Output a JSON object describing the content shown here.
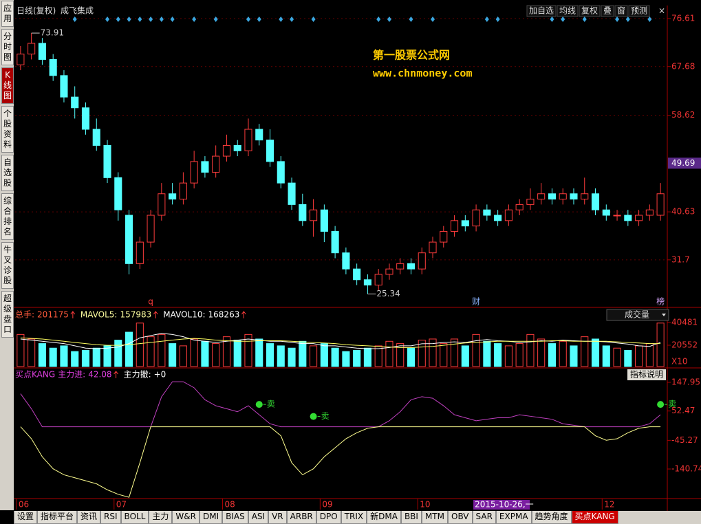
{
  "sidebar": [
    "应用",
    "分时图",
    "K线图",
    "个股资料",
    "自选股",
    "综合排名",
    "牛叉诊股",
    "超级盘口"
  ],
  "sidebar_active": 2,
  "header": {
    "title": "日线(复权)",
    "stock": "成飞集成",
    "buttons": [
      "加自选",
      "均线",
      "复权",
      "叠",
      "窗",
      "预测"
    ]
  },
  "watermark": {
    "line1": "第一股票公式网",
    "line2": "www.chnmoney.com"
  },
  "price": {
    "ylim": [
      22.85,
      79.04
    ],
    "yticks": [
      76.61,
      67.68,
      58.62,
      40.63,
      31.7
    ],
    "cursor": 49.69,
    "up_color": "#ff3c3c",
    "down_color": "#54ffff",
    "open": [
      68,
      70,
      72,
      69,
      66,
      62,
      60,
      56,
      53,
      47,
      40,
      31,
      35,
      40,
      44,
      43,
      46,
      50,
      48,
      51,
      53,
      52,
      56,
      54,
      50,
      46,
      42,
      39,
      41,
      37,
      33,
      30,
      28,
      27,
      29,
      30,
      31,
      30,
      33,
      35,
      37,
      39,
      38,
      41,
      40,
      39,
      41,
      42,
      43,
      44,
      43,
      44,
      43,
      44,
      41,
      40,
      40,
      39,
      40,
      40
    ],
    "high": [
      71.5,
      73.91,
      73,
      70,
      67,
      64,
      61,
      58,
      54,
      48,
      41,
      36,
      41,
      46,
      46,
      48,
      52,
      51,
      53,
      55,
      54,
      58,
      57,
      56,
      51,
      47,
      44,
      43,
      42,
      38,
      34,
      31,
      29,
      30,
      31,
      32,
      32,
      34,
      36,
      38,
      40,
      40,
      42,
      42,
      41,
      42,
      43,
      45,
      46,
      45,
      45,
      45,
      47,
      45,
      42,
      41,
      41,
      41,
      42,
      46
    ],
    "low": [
      67,
      69,
      68,
      65,
      61,
      58,
      55,
      52,
      46,
      39,
      29,
      30,
      34,
      39,
      42,
      42,
      45,
      47,
      47,
      50,
      51,
      51,
      53,
      49,
      45,
      41,
      38,
      36,
      35,
      32,
      29,
      27,
      25.34,
      26,
      28,
      29,
      29,
      29,
      32,
      34,
      36,
      37,
      37,
      39,
      38,
      38,
      40,
      41,
      42,
      42,
      42,
      42,
      42,
      40,
      39,
      39,
      38,
      38,
      39,
      39
    ],
    "close": [
      70,
      72,
      69,
      66,
      62,
      60,
      56,
      53,
      47,
      41,
      31,
      35,
      40,
      44,
      43,
      46,
      50,
      48,
      51,
      53,
      52,
      56,
      54,
      50,
      46,
      42,
      39,
      41,
      37,
      33,
      30,
      28,
      27,
      29,
      30,
      31,
      30,
      33,
      35,
      37,
      39,
      38,
      41,
      40,
      39,
      41,
      42,
      43,
      44,
      43,
      44,
      43,
      44,
      41,
      40,
      40,
      39,
      40,
      41,
      44
    ],
    "markers": [
      {
        "index": 12,
        "label": "q"
      },
      {
        "index": 42,
        "label": "财"
      },
      {
        "index": 59,
        "label": "榜"
      }
    ]
  },
  "volume": {
    "dropdown": "成交量",
    "stats": [
      {
        "label": "总手:",
        "value": 201175
      },
      {
        "label": "MAVOL5:",
        "value": 157983
      },
      {
        "label": "MAVOL10:",
        "value": 168263
      }
    ],
    "ylim": [
      1832,
      44708
    ],
    "yticks": [
      40481,
      20552
    ],
    "unit": "X10",
    "values": [
      30000,
      26000,
      22000,
      18000,
      20000,
      15000,
      16000,
      18000,
      20000,
      25000,
      32000,
      40000,
      28000,
      30000,
      22000,
      20000,
      26000,
      24000,
      22000,
      28000,
      25000,
      30000,
      26000,
      22000,
      20000,
      18000,
      24000,
      20000,
      22000,
      18000,
      15000,
      16000,
      18000,
      20000,
      24000,
      22000,
      18000,
      25000,
      26000,
      22000,
      26000,
      20000,
      30000,
      24000,
      22000,
      20000,
      22000,
      30000,
      26000,
      22000,
      24000,
      20000,
      28000,
      26000,
      20000,
      18000,
      16000,
      20000,
      22000,
      40000
    ],
    "ma5": [
      26000,
      25000,
      24000,
      23000,
      22000,
      20000,
      18000,
      17500,
      18000,
      19000,
      22000,
      27000,
      29000,
      31000,
      30000,
      28000,
      25000,
      24000,
      23000,
      24000,
      25000,
      26000,
      25000,
      24000,
      24000,
      23000,
      22000,
      22000,
      20000,
      20000,
      19000,
      18000,
      17500,
      17500,
      18500,
      20000,
      20000,
      21800,
      22000,
      23000,
      23500,
      23000,
      24500,
      25500,
      24500,
      24000,
      23000,
      23500,
      24500,
      24000,
      25000,
      24500,
      24000,
      24000,
      23500,
      22500,
      21500,
      20000,
      19500,
      23000
    ],
    "ma10": [
      27000,
      26500,
      26000,
      25000,
      24000,
      23000,
      22000,
      21000,
      20500,
      20500,
      21000,
      22000,
      23000,
      24000,
      25000,
      26000,
      26500,
      26000,
      25000,
      24500,
      24000,
      24000,
      24500,
      24500,
      24500,
      24000,
      23500,
      23000,
      22500,
      22000,
      21000,
      20500,
      20000,
      19500,
      19000,
      18500,
      18500,
      19000,
      19500,
      20500,
      21500,
      22500,
      23000,
      23500,
      24000,
      24000,
      24000,
      24000,
      24000,
      24500,
      24500,
      24000,
      24000,
      24000,
      24000,
      23500,
      23000,
      22500,
      22000,
      22000
    ]
  },
  "indicator": {
    "name": "买点KANG",
    "stats": [
      {
        "label": "主力进:",
        "value": 42.08
      },
      {
        "label": "主力撤:",
        "value": "+0"
      }
    ],
    "help": "指标说明",
    "ylim": [
      -239.2,
      166.3
    ],
    "yticks": [
      147.95,
      52.47,
      -45.27,
      -140.74
    ],
    "upper": [
      110,
      60,
      0,
      0,
      0,
      0,
      0,
      0,
      0,
      0,
      0,
      0,
      0,
      100,
      150,
      150,
      130,
      90,
      70,
      60,
      50,
      70,
      40,
      10,
      0,
      0,
      0,
      0,
      0,
      0,
      0,
      0,
      0,
      0,
      20,
      50,
      90,
      100,
      95,
      70,
      40,
      30,
      20,
      25,
      30,
      30,
      40,
      35,
      30,
      25,
      10,
      5,
      0,
      0,
      0,
      0,
      0,
      0,
      10,
      40
    ],
    "lower": [
      0,
      -40,
      -100,
      -140,
      -160,
      -170,
      -180,
      -190,
      -210,
      -225,
      -235,
      -120,
      0,
      0,
      0,
      0,
      0,
      0,
      0,
      0,
      0,
      0,
      0,
      0,
      -30,
      -120,
      -160,
      -140,
      -100,
      -70,
      -40,
      -20,
      -5,
      0,
      0,
      0,
      0,
      0,
      0,
      0,
      0,
      0,
      0,
      0,
      0,
      0,
      0,
      0,
      0,
      0,
      0,
      0,
      0,
      -30,
      -45,
      -40,
      -20,
      -5,
      0,
      0
    ],
    "sell": {
      "indices": [
        22,
        27,
        59
      ],
      "label": "卖"
    }
  },
  "xaxis": [
    {
      "index": 0,
      "label": "06"
    },
    {
      "index": 9,
      "label": "07"
    },
    {
      "index": 19,
      "label": "08"
    },
    {
      "index": 28,
      "label": "09"
    },
    {
      "index": 37,
      "label": "10"
    },
    {
      "index": 42,
      "label": "2015-10-26,一"
    },
    {
      "index": 54,
      "label": "12"
    }
  ],
  "tabs": [
    "设置",
    "指标平台",
    "资讯",
    "RSI",
    "BOLL",
    "主力",
    "W&R",
    "DMI",
    "BIAS",
    "ASI",
    "VR",
    "ARBR",
    "DPO",
    "TRIX",
    "新DMA",
    "BBI",
    "MTM",
    "OBV",
    "SAR",
    "EXPMA",
    "趋势角度",
    "买点KANG"
  ],
  "active_tab": 21
}
